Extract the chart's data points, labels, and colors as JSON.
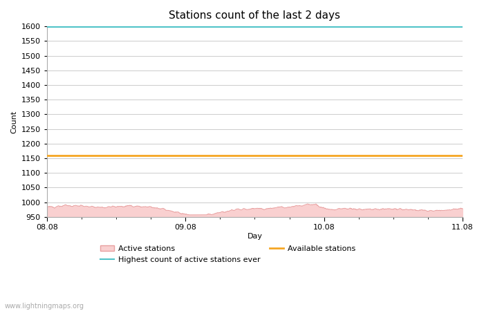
{
  "title": "Stations count of the last 2 days",
  "xlabel": "Day",
  "ylabel": "Count",
  "ylim": [
    950,
    1600
  ],
  "yticks": [
    950,
    1000,
    1050,
    1100,
    1150,
    1200,
    1250,
    1300,
    1350,
    1400,
    1450,
    1500,
    1550,
    1600
  ],
  "xtick_labels": [
    "08.08",
    "09.08",
    "10.08",
    "11.08"
  ],
  "xtick_positions": [
    0.0,
    0.333,
    0.667,
    1.0
  ],
  "highest_ever_value": 1598,
  "highest_ever_color": "#4fc3c8",
  "available_stations_value": 1160,
  "available_stations_color": "#f5a623",
  "active_stations_fill_color": "#f9d0d0",
  "active_stations_line_color": "#e8a0a0",
  "background_color": "#ffffff",
  "grid_color": "#cccccc",
  "watermark": "www.lightningmaps.org",
  "title_fontsize": 11,
  "axis_label_fontsize": 8,
  "tick_fontsize": 8,
  "watermark_fontsize": 7,
  "legend_fontsize": 8
}
